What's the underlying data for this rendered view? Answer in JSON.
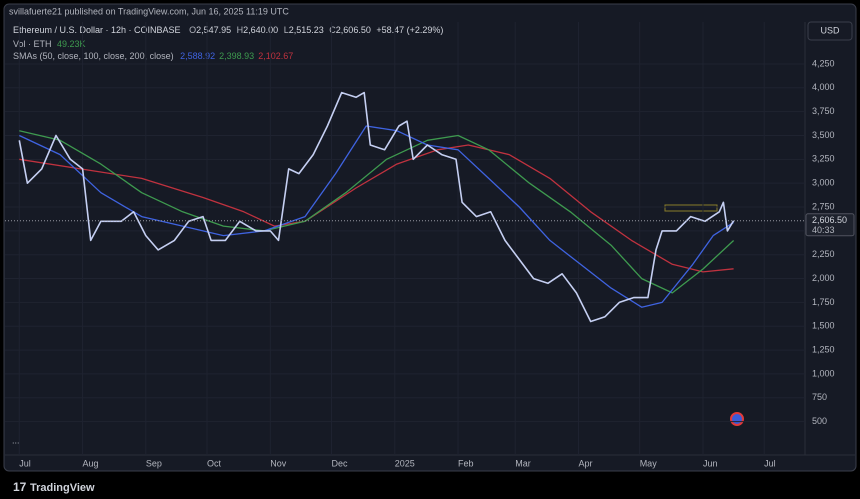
{
  "header": {
    "publisher": "svillafuerte21 published on TradingView.com, Jun 16, 2025 11:19 UTC",
    "brand": "TradingView"
  },
  "chart_data": {
    "type": "line",
    "legend": {
      "symbol": "Ethereum / U.S. Dollar · 12h · COINBASE",
      "ohlc": [
        {
          "key": "O",
          "value": "2,547.95"
        },
        {
          "key": "H",
          "value": "2,640.00"
        },
        {
          "key": "L",
          "value": "2,515.23"
        },
        {
          "key": "C",
          "value": "2,606.50"
        }
      ],
      "change": "+58.47 (+2.29%)",
      "volume_title": "Vol · ETH",
      "volume_value": "49.23K",
      "sma_title": "SMAs (50, close, 100, close, 200, close)",
      "sma_values": [
        {
          "text": "2,588.92",
          "color": "#3f63e0"
        },
        {
          "text": "2,398.93",
          "color": "#3e9a4f"
        },
        {
          "text": "2,102.67",
          "color": "#c0323f"
        }
      ]
    },
    "currency": "USD",
    "price_label": {
      "value": 2606.5,
      "label": "2,606.50"
    },
    "countdown": "40:33",
    "more": "...",
    "xlim": [
      -7,
      385
    ],
    "xticks": [
      {
        "value": 0,
        "label": "Jul"
      },
      {
        "value": 31,
        "label": "Aug"
      },
      {
        "value": 62,
        "label": "Sep"
      },
      {
        "value": 92,
        "label": "Oct"
      },
      {
        "value": 123,
        "label": "Nov"
      },
      {
        "value": 153,
        "label": "Dec"
      },
      {
        "value": 184,
        "label": "2025"
      },
      {
        "value": 215,
        "label": "Feb"
      },
      {
        "value": 243,
        "label": "Mar"
      },
      {
        "value": 274,
        "label": "Apr"
      },
      {
        "value": 304,
        "label": "May"
      },
      {
        "value": 335,
        "label": "Jun"
      },
      {
        "value": 365,
        "label": "Jul"
      }
    ],
    "ylim": [
      150,
      4690
    ],
    "yticks": [
      500,
      750,
      {
        "value": 1000,
        "label": "1,000"
      },
      {
        "value": 1250,
        "label": "1,250"
      },
      {
        "value": 1500,
        "label": "1,500"
      },
      {
        "value": 1750,
        "label": "1,750"
      },
      {
        "value": 2000,
        "label": "2,000"
      },
      {
        "value": 2250,
        "label": "2,250"
      },
      {
        "value": 2500,
        "label": "2,500"
      },
      {
        "value": 2750,
        "label": "2,750"
      },
      {
        "value": 3000,
        "label": "3,000"
      },
      {
        "value": 3250,
        "label": "3,250"
      },
      {
        "value": 3500,
        "label": "3,500"
      },
      {
        "value": 3750,
        "label": "3,750"
      },
      {
        "value": 4000,
        "label": "4,000"
      },
      {
        "value": 4250,
        "label": "4,250"
      }
    ],
    "grid": true,
    "series": [
      {
        "color": "#c5cff2",
        "width": 1.6,
        "x": [
          0,
          4,
          11,
          18,
          25,
          31,
          35,
          40,
          50,
          56,
          62,
          68,
          76,
          83,
          90,
          94,
          101,
          108,
          116,
          123,
          127,
          132,
          137,
          144,
          151,
          158,
          165,
          169,
          172,
          179,
          186,
          190,
          193,
          200,
          207,
          214,
          217,
          224,
          231,
          238,
          245,
          252,
          259,
          266,
          273,
          280,
          287,
          294,
          301,
          308,
          312,
          315,
          322,
          329,
          336,
          343,
          345,
          347,
          350
        ],
        "values": [
          3450,
          3000,
          3150,
          3500,
          3250,
          3150,
          2400,
          2600,
          2600,
          2700,
          2450,
          2300,
          2400,
          2600,
          2650,
          2400,
          2400,
          2600,
          2500,
          2500,
          2400,
          3150,
          3100,
          3300,
          3600,
          3950,
          3900,
          3950,
          3400,
          3350,
          3600,
          3650,
          3250,
          3400,
          3300,
          3250,
          2800,
          2650,
          2700,
          2400,
          2200,
          2000,
          1950,
          2050,
          1850,
          1550,
          1600,
          1750,
          1800,
          1800,
          2300,
          2500,
          2500,
          2650,
          2600,
          2700,
          2800,
          2500,
          2606.5
        ]
      },
      {
        "color": "#3f63e0",
        "width": 1.3,
        "x": [
          0,
          20,
          40,
          60,
          80,
          100,
          120,
          140,
          155,
          170,
          185,
          200,
          215,
          230,
          245,
          260,
          275,
          290,
          305,
          315,
          330,
          340,
          350
        ],
        "values": [
          3500,
          3300,
          2900,
          2650,
          2550,
          2450,
          2500,
          2650,
          3100,
          3600,
          3550,
          3400,
          3350,
          3050,
          2750,
          2400,
          2150,
          1900,
          1700,
          1750,
          2150,
          2450,
          2588.92
        ]
      },
      {
        "color": "#3e9a4f",
        "width": 1.3,
        "x": [
          0,
          20,
          40,
          60,
          80,
          100,
          120,
          140,
          160,
          180,
          200,
          215,
          230,
          250,
          270,
          290,
          305,
          320,
          335,
          350
        ],
        "values": [
          3550,
          3450,
          3200,
          2900,
          2700,
          2550,
          2500,
          2600,
          2900,
          3250,
          3450,
          3500,
          3350,
          3000,
          2700,
          2350,
          2000,
          1850,
          2100,
          2398.93
        ]
      },
      {
        "color": "#c0323f",
        "width": 1.3,
        "x": [
          0,
          30,
          60,
          90,
          110,
          125,
          140,
          165,
          185,
          205,
          220,
          240,
          260,
          280,
          300,
          320,
          335,
          350
        ],
        "values": [
          3250,
          3150,
          3050,
          2850,
          2700,
          2550,
          2600,
          2950,
          3200,
          3350,
          3400,
          3300,
          3050,
          2700,
          2400,
          2150,
          2070,
          2102.67
        ]
      }
    ]
  }
}
